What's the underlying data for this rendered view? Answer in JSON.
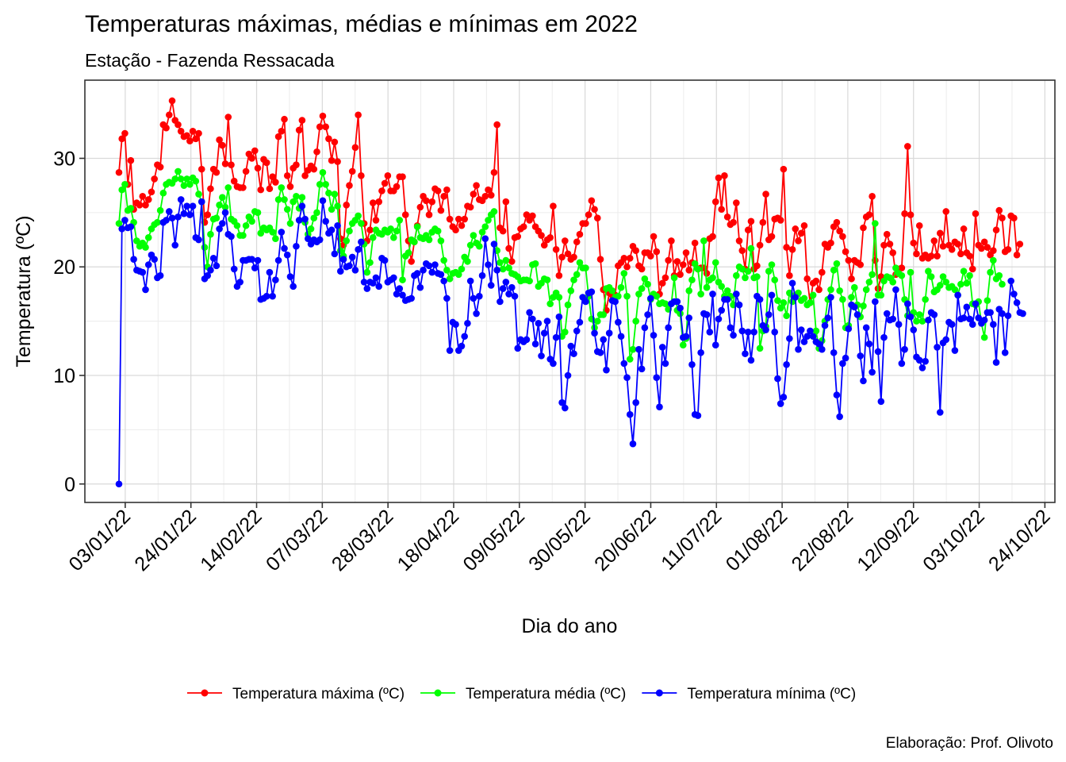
{
  "chart_data": {
    "type": "line",
    "title": "Temperaturas máximas, médias e mínimas em 2022",
    "subtitle": "Estação - Fazenda Ressacada",
    "xlabel": "Dia do ano",
    "ylabel": "Temperatura (ºC)",
    "caption": "Elaboração: Prof. Olivoto",
    "x_ticks": [
      "03/01/22",
      "24/01/22",
      "14/02/22",
      "07/03/22",
      "28/03/22",
      "18/04/22",
      "09/05/22",
      "30/05/22",
      "20/06/22",
      "11/07/22",
      "01/08/22",
      "22/08/22",
      "12/09/22",
      "03/10/22",
      "24/10/22"
    ],
    "x_start": "01/01/22",
    "x_end": "16/10/22",
    "y_ticks": [
      0,
      10,
      20,
      30
    ],
    "ylim": [
      -1.7,
      37.2
    ],
    "grid": true,
    "legend_position": "bottom",
    "series": [
      {
        "name": "Temperatura máxima (ºC)",
        "color": "#ff0000",
        "values": [
          28.7,
          31.8,
          32.3,
          27.6,
          29.8,
          25.3,
          25.9,
          25.7,
          26.5,
          25.7,
          26.2,
          26.9,
          28.1,
          29.4,
          29.2,
          33.1,
          32.8,
          34.0,
          35.3,
          33.5,
          33.1,
          32.5,
          32.0,
          32.1,
          31.6,
          32.5,
          31.8,
          32.3,
          29.0,
          24.1,
          24.8,
          27.2,
          29.0,
          28.7,
          31.7,
          31.2,
          29.5,
          33.8,
          29.4,
          27.9,
          27.4,
          27.3,
          27.3,
          28.8,
          30.4,
          30.0,
          30.7,
          29.1,
          27.1,
          29.9,
          29.6,
          27.2,
          28.3,
          27.8,
          32.0,
          32.5,
          33.6,
          28.4,
          27.4,
          29.1,
          29.4,
          32.6,
          33.5,
          28.4,
          28.9,
          29.3,
          29.0,
          30.6,
          32.9,
          33.9,
          32.9,
          31.8,
          29.8,
          31.5,
          29.7,
          22.6,
          22.0,
          25.7,
          27.5,
          28.8,
          31.0,
          34.0,
          28.4,
          24.0,
          22.4,
          23.4,
          25.9,
          24.3,
          26.0,
          27.0,
          27.7,
          28.4,
          27.0,
          27.0,
          27.4,
          28.3,
          28.3,
          24.8,
          22.4,
          20.5,
          22.3,
          23.8,
          25.5,
          26.5,
          26.1,
          24.8,
          26.0,
          27.2,
          27.0,
          25.2,
          26.5,
          27.1,
          24.4,
          23.7,
          23.4,
          24.4,
          23.8,
          24.4,
          25.6,
          25.5,
          26.7,
          27.5,
          26.2,
          26.1,
          26.5,
          27.1,
          26.6,
          28.7,
          33.1,
          23.6,
          23.3,
          26.0,
          21.7,
          20.5,
          22.7,
          22.8,
          23.5,
          23.7,
          24.8,
          24.3,
          24.7,
          23.7,
          23.3,
          22.9,
          22.0,
          22.5,
          22.7,
          25.6,
          21.6,
          19.2,
          20.9,
          22.4,
          21.2,
          20.7,
          20.9,
          22.3,
          23.0,
          24.0,
          24.0,
          24.8,
          26.1,
          25.3,
          24.5,
          20.7,
          17.9,
          16.0,
          17.6,
          17.4,
          17.4,
          20.1,
          20.4,
          20.8,
          20.0,
          20.8,
          21.9,
          21.5,
          20.1,
          19.8,
          21.3,
          21.3,
          21.0,
          22.8,
          21.4,
          17.5,
          18.5,
          19.0,
          20.6,
          22.4,
          19.2,
          20.5,
          19.3,
          20.2,
          21.3,
          19.7,
          20.4,
          22.2,
          19.8,
          19.9,
          19.9,
          19.4,
          22.6,
          22.8,
          26.0,
          28.2,
          25.3,
          28.4,
          24.6,
          23.9,
          24.1,
          25.9,
          22.4,
          21.5,
          19.8,
          23.4,
          24.2,
          19.8,
          20.1,
          22.0,
          24.1,
          26.7,
          22.5,
          22.8,
          24.4,
          24.5,
          24.3,
          29.0,
          21.8,
          19.2,
          21.6,
          23.5,
          22.4,
          23.1,
          23.8,
          18.9,
          16.7,
          18.5,
          18.7,
          17.9,
          19.5,
          22.1,
          21.8,
          22.2,
          23.7,
          24.1,
          23.3,
          22.8,
          21.4,
          20.6,
          18.9,
          20.6,
          20.4,
          20.2,
          23.6,
          24.6,
          24.8,
          26.5,
          20.6,
          18.0,
          19.1,
          22.0,
          23.0,
          22.1,
          21.3,
          19.3,
          19.8,
          19.9,
          24.9,
          31.1,
          24.8,
          22.2,
          21.2,
          23.8,
          20.8,
          21.1,
          20.8,
          21.0,
          22.4,
          21.0,
          23.1,
          21.9,
          25.1,
          22.0,
          21.6,
          22.3,
          22.1,
          21.2,
          23.5,
          21.3,
          21.0,
          19.8,
          24.9,
          22.0,
          21.7,
          22.3,
          21.8,
          21.1,
          21.5,
          23.4,
          25.2,
          24.5,
          21.4,
          21.6,
          24.7,
          24.5,
          21.1,
          22.1
        ]
      },
      {
        "name": "Temperatura média (ºC)",
        "color": "#00ff00",
        "values": [
          24.0,
          27.1,
          27.6,
          25.2,
          25.4,
          24.1,
          22.4,
          21.9,
          22.2,
          21.8,
          22.7,
          23.5,
          23.9,
          24.1,
          25.2,
          26.8,
          27.6,
          27.8,
          27.7,
          28.1,
          28.8,
          28.1,
          27.5,
          28.1,
          27.6,
          28.2,
          27.9,
          26.7,
          26.0,
          21.8,
          20.0,
          23.0,
          24.4,
          24.5,
          25.7,
          26.4,
          25.5,
          27.3,
          24.4,
          24.2,
          23.8,
          22.9,
          22.9,
          23.8,
          24.6,
          24.2,
          25.1,
          25.0,
          23.1,
          23.6,
          23.4,
          23.6,
          23.2,
          22.6,
          26.2,
          27.3,
          26.2,
          25.3,
          24.0,
          26.0,
          26.5,
          25.4,
          26.4,
          24.1,
          23.0,
          23.5,
          24.5,
          25.0,
          27.6,
          28.7,
          27.6,
          26.8,
          25.3,
          26.7,
          25.6,
          21.5,
          21.0,
          22.4,
          23.3,
          24.0,
          24.3,
          24.7,
          24.0,
          22.1,
          19.5,
          20.4,
          22.7,
          23.4,
          23.1,
          23.0,
          23.4,
          23.2,
          23.5,
          22.7,
          23.3,
          24.3,
          18.8,
          21.0,
          21.3,
          22.5,
          22.3,
          23.7,
          22.7,
          22.6,
          22.9,
          22.5,
          23.2,
          23.5,
          23.3,
          22.4,
          20.6,
          19.7,
          18.9,
          19.4,
          19.5,
          19.3,
          19.8,
          20.9,
          20.5,
          22.0,
          22.9,
          22.2,
          21.9,
          23.2,
          23.7,
          24.3,
          24.8,
          25.1,
          21.5,
          20.4,
          19.8,
          20.6,
          19.9,
          19.4,
          19.3,
          19.1,
          18.7,
          18.8,
          18.8,
          18.7,
          20.2,
          20.3,
          18.2,
          18.5,
          18.9,
          18.8,
          16.6,
          17.2,
          17.6,
          17.2,
          13.6,
          14.0,
          16.5,
          17.8,
          18.8,
          19.3,
          20.4,
          19.9,
          19.9,
          17.3,
          15.2,
          14.4,
          15.0,
          15.6,
          15.6,
          18.0,
          18.1,
          17.8,
          17.2,
          17.3,
          18.1,
          19.4,
          17.3,
          11.5,
          12.4,
          15.0,
          17.5,
          18.0,
          18.9,
          18.4,
          17.0,
          17.5,
          17.3,
          16.6,
          16.7,
          16.6,
          16.1,
          16.6,
          19.0,
          16.0,
          15.7,
          12.8,
          13.4,
          17.8,
          18.8,
          20.3,
          19.8,
          17.5,
          22.4,
          18.1,
          18.8,
          19.0,
          20.4,
          18.6,
          18.2,
          17.3,
          17.8,
          17.3,
          16.5,
          19.2,
          20.0,
          19.8,
          19.0,
          19.6,
          21.7,
          19.0,
          19.1,
          12.5,
          14.1,
          14.5,
          19.6,
          20.2,
          18.8,
          16.9,
          16.2,
          16.7,
          15.5,
          17.6,
          16.8,
          17.4,
          17.6,
          16.9,
          17.1,
          16.5,
          16.7,
          17.4,
          14.1,
          12.5,
          13.2,
          15.0,
          17.0,
          17.9,
          19.7,
          20.3,
          17.8,
          17.0,
          14.4,
          14.6,
          17.2,
          18.1,
          16.5,
          15.4,
          16.4,
          17.9,
          18.6,
          19.3,
          24.0,
          17.4,
          17.4,
          18.7,
          19.1,
          19.0,
          18.6,
          19.9,
          19.4,
          19.2,
          17.0,
          15.5,
          19.5,
          15.8,
          15.0,
          15.6,
          15.0,
          17.0,
          19.6,
          19.1,
          17.7,
          17.9,
          18.3,
          19.1,
          18.6,
          18.1,
          18.2,
          17.9,
          17.4,
          18.4,
          19.6,
          18.5,
          19.2,
          16.6,
          16.5,
          16.8,
          14.8,
          13.5,
          16.9,
          19.5,
          20.6,
          18.9,
          19.2,
          18.4
        ]
      },
      {
        "name": "Temperatura mínima (ºC)",
        "color": "#0000ff",
        "values": [
          0.0,
          23.5,
          24.3,
          23.6,
          23.7,
          20.7,
          19.7,
          19.6,
          19.5,
          17.9,
          20.2,
          21.1,
          20.7,
          19.0,
          19.2,
          24.1,
          24.3,
          25.1,
          24.5,
          22.0,
          24.6,
          26.2,
          24.9,
          25.6,
          24.8,
          25.6,
          22.7,
          22.5,
          26.0,
          18.9,
          19.2,
          19.7,
          20.8,
          20.1,
          23.5,
          24.0,
          25.0,
          23.0,
          22.8,
          19.8,
          18.2,
          18.6,
          20.6,
          20.6,
          20.7,
          20.7,
          19.9,
          20.6,
          17.0,
          17.1,
          17.3,
          19.5,
          17.3,
          18.8,
          20.6,
          23.2,
          21.7,
          21.1,
          19.1,
          18.2,
          21.9,
          24.3,
          25.6,
          24.4,
          22.6,
          22.1,
          22.5,
          22.3,
          22.5,
          26.1,
          24.2,
          23.1,
          23.4,
          21.2,
          23.8,
          19.6,
          20.7,
          20.0,
          20.1,
          20.9,
          19.7,
          21.6,
          22.3,
          18.6,
          18.0,
          18.6,
          18.5,
          19.0,
          18.2,
          20.8,
          20.6,
          18.6,
          18.8,
          19.0,
          17.5,
          18.0,
          17.4,
          16.9,
          17.0,
          17.1,
          19.2,
          19.4,
          18.1,
          19.7,
          20.3,
          20.1,
          19.5,
          20.2,
          19.4,
          19.3,
          18.7,
          17.1,
          12.3,
          14.9,
          14.7,
          12.3,
          12.7,
          13.6,
          14.8,
          18.7,
          17.1,
          15.7,
          17.3,
          19.2,
          22.6,
          20.2,
          18.3,
          22.1,
          19.7,
          16.8,
          18.0,
          18.6,
          17.5,
          18.1,
          17.3,
          12.5,
          13.3,
          13.1,
          13.3,
          15.8,
          15.2,
          12.9,
          14.8,
          11.8,
          13.9,
          15.0,
          11.5,
          11.1,
          13.5,
          15.4,
          7.5,
          7.0,
          10.0,
          12.7,
          12.0,
          14.1,
          14.9,
          17.2,
          16.8,
          17.6,
          17.7,
          13.9,
          12.2,
          12.1,
          13.3,
          10.5,
          13.9,
          16.9,
          16.8,
          14.9,
          13.6,
          11.1,
          9.8,
          6.4,
          3.7,
          7.5,
          12.4,
          10.6,
          14.4,
          15.6,
          17.1,
          13.7,
          9.8,
          7.1,
          12.6,
          11.1,
          14.4,
          16.6,
          16.8,
          16.8,
          16.2,
          13.5,
          13.6,
          15.3,
          11.0,
          6.4,
          6.3,
          12.1,
          15.7,
          15.6,
          14.0,
          17.5,
          12.8,
          15.2,
          16.0,
          17.0,
          17.0,
          14.4,
          13.7,
          17.5,
          16.5,
          14.1,
          12.0,
          14.0,
          11.4,
          14.0,
          17.3,
          17.0,
          14.6,
          14.2,
          15.6,
          17.4,
          14.0,
          9.7,
          7.4,
          8.0,
          11.0,
          13.4,
          18.5,
          17.2,
          12.4,
          14.2,
          13.1,
          13.6,
          14.1,
          13.6,
          13.1,
          12.9,
          12.4,
          14.6,
          15.3,
          17.2,
          12.1,
          8.2,
          6.2,
          11.1,
          11.6,
          14.3,
          16.5,
          16.3,
          15.6,
          11.8,
          9.5,
          14.4,
          12.9,
          10.3,
          16.8,
          12.2,
          7.6,
          13.5,
          15.7,
          15.1,
          15.2,
          17.9,
          14.7,
          11.1,
          12.4,
          16.6,
          15.4,
          14.2,
          11.7,
          11.4,
          10.7,
          11.3,
          15.1,
          15.8,
          15.6,
          12.6,
          6.6,
          13.0,
          13.3,
          14.9,
          14.7,
          12.3,
          17.4,
          15.2,
          15.3,
          16.3,
          15.2,
          14.7,
          16.6,
          15.3,
          14.8,
          15.1,
          15.8,
          15.8,
          14.7,
          11.2,
          16.1,
          15.7,
          12.1,
          15.5,
          18.7,
          17.5,
          16.7,
          15.8,
          15.7
        ]
      }
    ]
  }
}
